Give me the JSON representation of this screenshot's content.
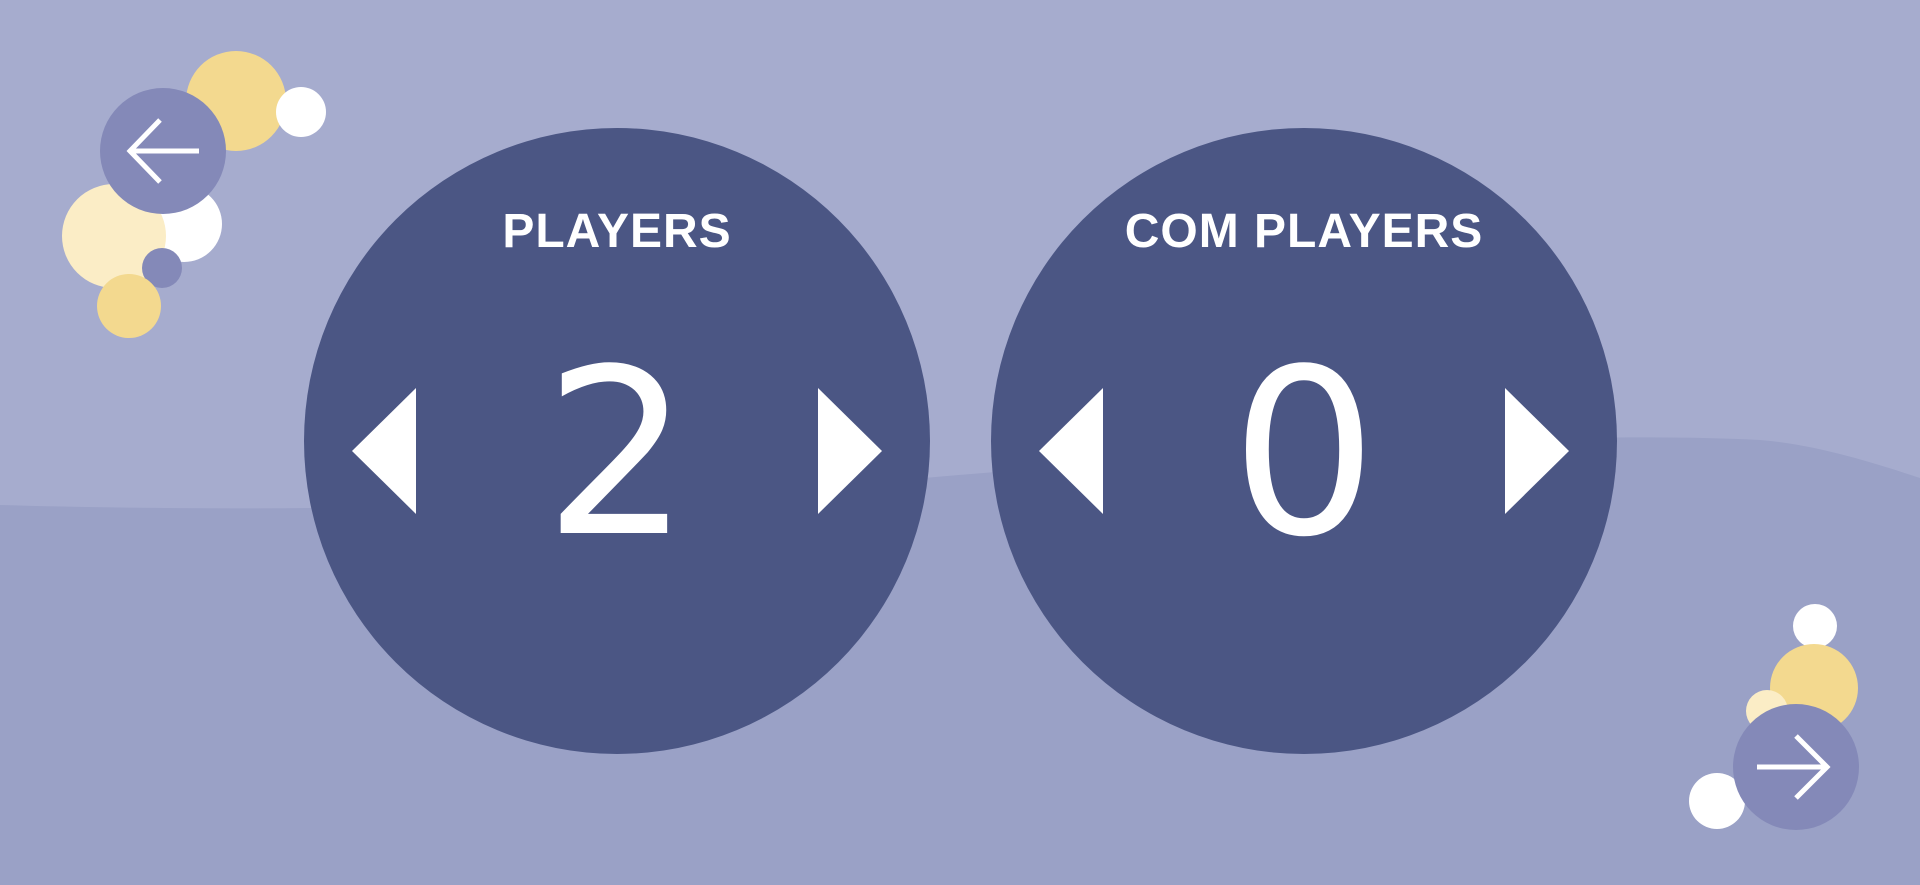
{
  "colors": {
    "background": "#a6acce",
    "ground": "#9aa1c6",
    "panel": "#4b5684",
    "nav_button": "#8489b8",
    "bubble_yellow": "#f3d98f",
    "bubble_cream": "#fbedc6",
    "bubble_white": "#ffffff",
    "text": "#ffffff"
  },
  "players": {
    "title": "PLAYERS",
    "value": "2",
    "decrease_icon": "triangle-left-icon",
    "increase_icon": "triangle-right-icon"
  },
  "com_players": {
    "title": "COM PLAYERS",
    "value": "0",
    "decrease_icon": "triangle-left-icon",
    "increase_icon": "triangle-right-icon"
  },
  "navigation": {
    "back_icon": "arrow-left-icon",
    "next_icon": "arrow-right-icon"
  }
}
